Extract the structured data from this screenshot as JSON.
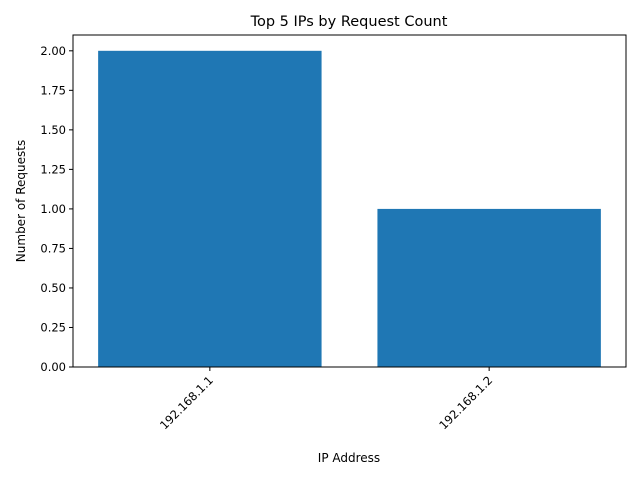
{
  "chart_data": {
    "type": "bar",
    "title": "Top 5 IPs by Request Count",
    "xlabel": "IP Address",
    "ylabel": "Number of Requests",
    "categories": [
      "192.168.1.1",
      "192.168.1.2"
    ],
    "values": [
      2,
      1
    ],
    "ylim": [
      0,
      2.1
    ],
    "yticks": [
      0.0,
      0.25,
      0.5,
      0.75,
      1.0,
      1.25,
      1.5,
      1.75,
      2.0
    ],
    "ytick_labels": [
      "0.00",
      "0.25",
      "0.50",
      "0.75",
      "1.00",
      "1.25",
      "1.50",
      "1.75",
      "2.00"
    ],
    "bar_color": "#1f77b4",
    "grid": false,
    "xtick_rotation_deg": 45
  }
}
